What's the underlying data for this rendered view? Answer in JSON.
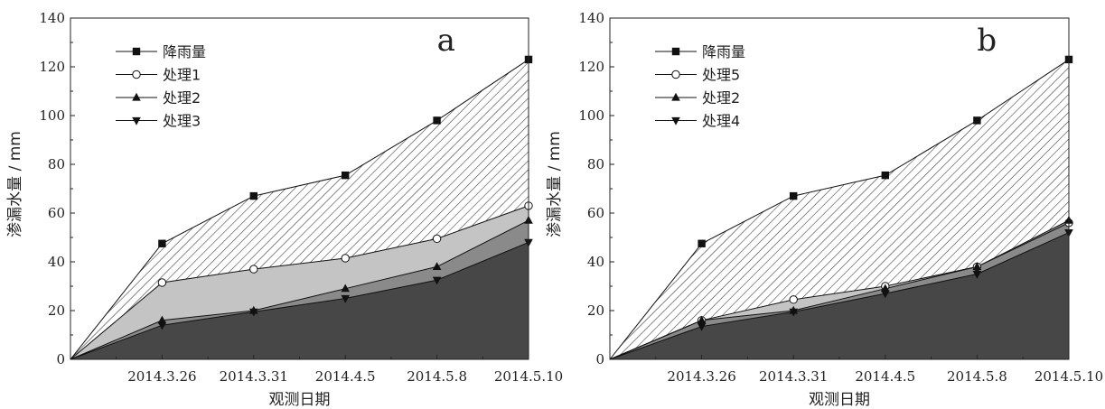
{
  "chart_data": [
    {
      "type": "area",
      "panel_label": "a",
      "xlabel": "观测日期",
      "ylabel": "渗漏水量 / mm",
      "ylim": [
        0,
        140
      ],
      "yticks": [
        0,
        20,
        40,
        60,
        80,
        100,
        120,
        140
      ],
      "categories": [
        "",
        "2014.3.26",
        "2014.3.31",
        "2014.4.5",
        "2014.5.8",
        "2014.5.10"
      ],
      "legend_position": "top-left",
      "series": [
        {
          "name": "降雨量",
          "marker": "square",
          "fill": "hatch",
          "values": [
            0,
            47.5,
            67,
            75.5,
            98,
            123
          ]
        },
        {
          "name": "处理1",
          "marker": "circle",
          "fill": "#c4c4c4",
          "values": [
            0,
            31.5,
            37,
            41.5,
            49.5,
            63
          ]
        },
        {
          "name": "处理2",
          "marker": "triangle-up",
          "fill": "#8a8a8a",
          "values": [
            0,
            16,
            20,
            29,
            38,
            57
          ]
        },
        {
          "name": "处理3",
          "marker": "triangle-down",
          "fill": "#474747",
          "values": [
            0,
            14,
            19.5,
            25,
            32.5,
            48
          ]
        }
      ]
    },
    {
      "type": "area",
      "panel_label": "b",
      "xlabel": "观测日期",
      "ylabel": "渗漏水量 / mm",
      "ylim": [
        0,
        140
      ],
      "yticks": [
        0,
        20,
        40,
        60,
        80,
        100,
        120,
        140
      ],
      "categories": [
        "",
        "2014.3.26",
        "2014.3.31",
        "2014.4.5",
        "2014.5.8",
        "2014.5.10"
      ],
      "legend_position": "top-left",
      "series": [
        {
          "name": "降雨量",
          "marker": "square",
          "fill": "hatch",
          "values": [
            0,
            47.5,
            67,
            75.5,
            98,
            123
          ]
        },
        {
          "name": "处理5",
          "marker": "circle",
          "fill": "#c4c4c4",
          "values": [
            0,
            16,
            24.5,
            30,
            38,
            56
          ]
        },
        {
          "name": "处理2",
          "marker": "triangle-up",
          "fill": "#8a8a8a",
          "values": [
            0,
            16,
            20,
            29,
            38,
            57
          ]
        },
        {
          "name": "处理4",
          "marker": "triangle-down",
          "fill": "#474747",
          "values": [
            0,
            13.5,
            19.5,
            27,
            35,
            52
          ]
        }
      ]
    }
  ]
}
